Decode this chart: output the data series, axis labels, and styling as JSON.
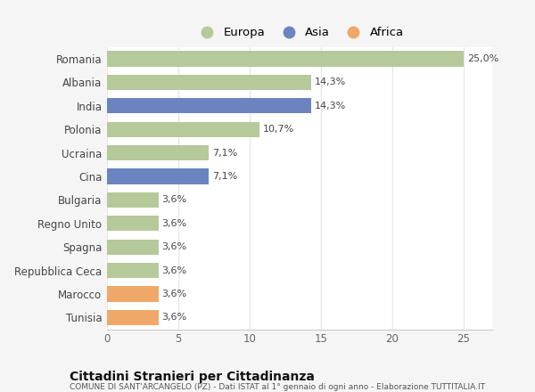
{
  "countries": [
    "Romania",
    "Albania",
    "India",
    "Polonia",
    "Ucraina",
    "Cina",
    "Bulgaria",
    "Regno Unito",
    "Spagna",
    "Repubblica Ceca",
    "Marocco",
    "Tunisia"
  ],
  "values": [
    25.0,
    14.3,
    14.3,
    10.7,
    7.1,
    7.1,
    3.6,
    3.6,
    3.6,
    3.6,
    3.6,
    3.6
  ],
  "labels": [
    "25,0%",
    "14,3%",
    "14,3%",
    "10,7%",
    "7,1%",
    "7,1%",
    "3,6%",
    "3,6%",
    "3,6%",
    "3,6%",
    "3,6%",
    "3,6%"
  ],
  "colors": [
    "#b5c99a",
    "#b5c99a",
    "#6b84c0",
    "#b5c99a",
    "#b5c99a",
    "#6b84c0",
    "#b5c99a",
    "#b5c99a",
    "#b5c99a",
    "#b5c99a",
    "#f0a868",
    "#f0a868"
  ],
  "legend": [
    {
      "label": "Europa",
      "color": "#b5c99a"
    },
    {
      "label": "Asia",
      "color": "#6b84c0"
    },
    {
      "label": "Africa",
      "color": "#f0a868"
    }
  ],
  "xlim": [
    0,
    27
  ],
  "xticks": [
    0,
    5,
    10,
    15,
    20,
    25
  ],
  "title": "Cittadini Stranieri per Cittadinanza",
  "subtitle": "COMUNE DI SANT'ARCANGELO (PZ) - Dati ISTAT al 1° gennaio di ogni anno - Elaborazione TUTTITALIA.IT",
  "bg_color": "#f5f5f5",
  "plot_bg_color": "#ffffff",
  "grid_color": "#e8e8e8",
  "bar_height": 0.65
}
